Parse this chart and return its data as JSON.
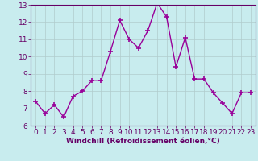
{
  "x": [
    0,
    1,
    2,
    3,
    4,
    5,
    6,
    7,
    8,
    9,
    10,
    11,
    12,
    13,
    14,
    15,
    16,
    17,
    18,
    19,
    20,
    21,
    22,
    23
  ],
  "y": [
    7.4,
    6.7,
    7.2,
    6.5,
    7.7,
    8.0,
    8.6,
    8.6,
    10.3,
    12.1,
    11.0,
    10.5,
    11.5,
    13.1,
    12.3,
    9.4,
    11.1,
    8.7,
    8.7,
    7.9,
    7.3,
    6.7,
    7.9,
    7.9
  ],
  "line_color": "#990099",
  "marker": "+",
  "marker_size": 5,
  "background_color": "#c8ecee",
  "grid_color": "#b0cccc",
  "xlabel": "Windchill (Refroidissement éolien,°C)",
  "xlabel_color": "#660066",
  "tick_color": "#660066",
  "spine_color": "#660066",
  "ylim": [
    6,
    13
  ],
  "xlim": [
    -0.5,
    23.5
  ],
  "yticks": [
    6,
    7,
    8,
    9,
    10,
    11,
    12,
    13
  ],
  "xticks": [
    0,
    1,
    2,
    3,
    4,
    5,
    6,
    7,
    8,
    9,
    10,
    11,
    12,
    13,
    14,
    15,
    16,
    17,
    18,
    19,
    20,
    21,
    22,
    23
  ],
  "tick_fontsize": 6.5,
  "xlabel_fontsize": 6.5,
  "linewidth": 1.0
}
